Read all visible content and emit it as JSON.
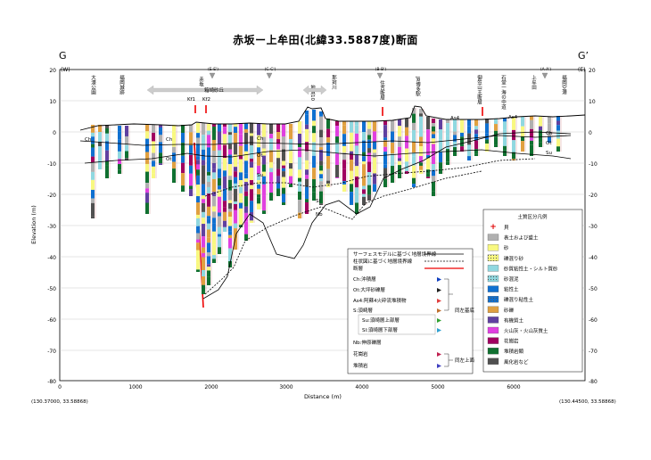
{
  "title": "赤坂ー上牟田(北緯33.5887度)断面",
  "corner_left": "G",
  "corner_right": "G’",
  "dir_left": "(W)",
  "dir_right": "(E)",
  "coord_left": "(130.37000, 33.58868)",
  "coord_right": "(130.44500, 33.58868)",
  "y_axis_label": "Elevation (m)",
  "x_axis_label": "Distance (m)",
  "y_ticks": [
    "20",
    "10",
    "0",
    "-10",
    "-20",
    "-30",
    "-40",
    "-50",
    "-60",
    "-70",
    "-80"
  ],
  "x_ticks": [
    "0",
    "1000",
    "2000",
    "3000",
    "4000",
    "5000",
    "6000"
  ],
  "top_labels": {
    "ohori": "大濠公園",
    "fukuoka_castle": "福岡城跡",
    "akasaka": "赤坂",
    "sb1": "(E-E')",
    "sb2": "(C-C')",
    "sb3": "(B-B')",
    "sb4": "(A-A')",
    "dune": "箱崎砂丘",
    "chikatsu": "地道10",
    "nakagawa": "那珂川",
    "sumiyoshi": "住吉断層",
    "hakata": "JR博多駅",
    "mikasa": "御笠山王断層",
    "ishidou": "石堂一海の中道",
    "kamimuta": "上牟田",
    "airport": "福岡空港",
    "kf1": "Kf1",
    "kf2": "Kf2"
  },
  "unit_labels": {
    "ch": "Ch",
    "ot": "Ot",
    "su": "Su",
    "as4": "As4",
    "sl": "Sl",
    "nb": "Nb"
  },
  "line_legend": {
    "items": [
      {
        "label": "サーフェスモデルに基づく地層境界線"
      },
      {
        "label": "柱状図に基づく地層境界線"
      },
      {
        "label": "断層"
      }
    ],
    "strata": [
      {
        "label": "Ch:沖積層",
        "color": "#1040c0"
      },
      {
        "label": "Ot:大坪砂礫層",
        "color": "#202020"
      },
      {
        "label": "As4:阿蘇4火砕流堆積物",
        "color": "#e04040"
      },
      {
        "label": "S:須崎層",
        "color": "#c07030"
      },
      {
        "label": "Su:須崎層上部層",
        "color": "#30a030"
      },
      {
        "label": "Sl:須崎層下部層",
        "color": "#30a0d0"
      },
      {
        "label": "Nb:伸原礫層",
        "color": ""
      },
      {
        "label": "花崗岩",
        "color": "#c02050"
      },
      {
        "label": "堆積岩",
        "color": "#4040c0"
      }
    ],
    "brace1": "同左基底",
    "brace2": "同左上面"
  },
  "soil_legend": {
    "title": "土質区分凡例",
    "items": [
      {
        "label": "貝",
        "color": "#e00000",
        "type": "cross"
      },
      {
        "label": "表土および盛土",
        "color": "#b0b0b0"
      },
      {
        "label": "砂",
        "color": "#f8f880"
      },
      {
        "label": "礫混り砂",
        "color": "#f8f880",
        "type": "dots"
      },
      {
        "label": "砂質粘性土・シルト質砂",
        "color": "#90d8e0"
      },
      {
        "label": "砂混泥",
        "color": "#90d8e0",
        "type": "dots"
      },
      {
        "label": "粘性土",
        "color": "#1070d0"
      },
      {
        "label": "礫混り粘性土",
        "color": "#1070d0",
        "type": "dots"
      },
      {
        "label": "砂礫",
        "color": "#e0a040"
      },
      {
        "label": "有機質土",
        "color": "#6040a0"
      },
      {
        "label": "火山灰・火山灰質土",
        "color": "#e040e0"
      },
      {
        "label": "花崗岩",
        "color": "#a00060"
      },
      {
        "label": "堆積岩類",
        "color": "#107030"
      },
      {
        "label": "風化岩など",
        "color": "#505050"
      }
    ]
  }
}
